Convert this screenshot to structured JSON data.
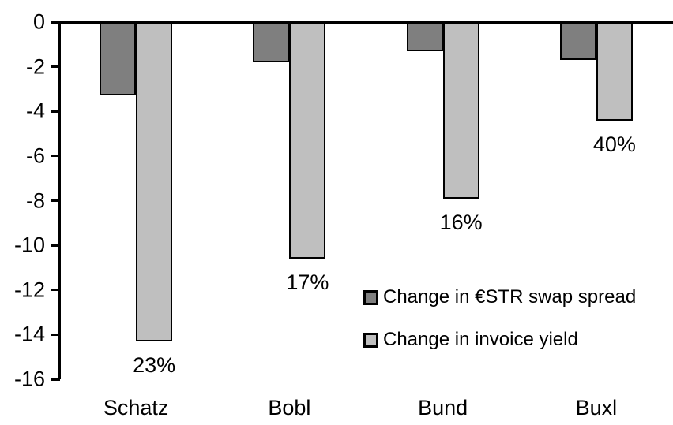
{
  "chart_data": {
    "type": "bar",
    "title": "",
    "xlabel": "",
    "ylabel": "",
    "categories": [
      "Schatz",
      "Bobl",
      "Bund",
      "Buxl"
    ],
    "series": [
      {
        "name": "Change in €STR swap spread",
        "color": "#7F7F7F",
        "values": [
          -3.3,
          -1.8,
          -1.3,
          -1.7
        ]
      },
      {
        "name": "Change in invoice yield",
        "color": "#BFBFBF",
        "values": [
          -14.3,
          -10.6,
          -7.9,
          -4.4
        ],
        "data_labels": [
          "23%",
          "17%",
          "16%",
          "40%"
        ]
      }
    ],
    "ylim": [
      0,
      -16
    ],
    "yticks": [
      0,
      -2,
      -4,
      -6,
      -8,
      -10,
      -12,
      -14,
      -16
    ],
    "grid": false,
    "legend_position": "inside-right",
    "bar_border_color": "#000000",
    "axis_color": "#000000",
    "background_color": "#FFFFFF"
  }
}
